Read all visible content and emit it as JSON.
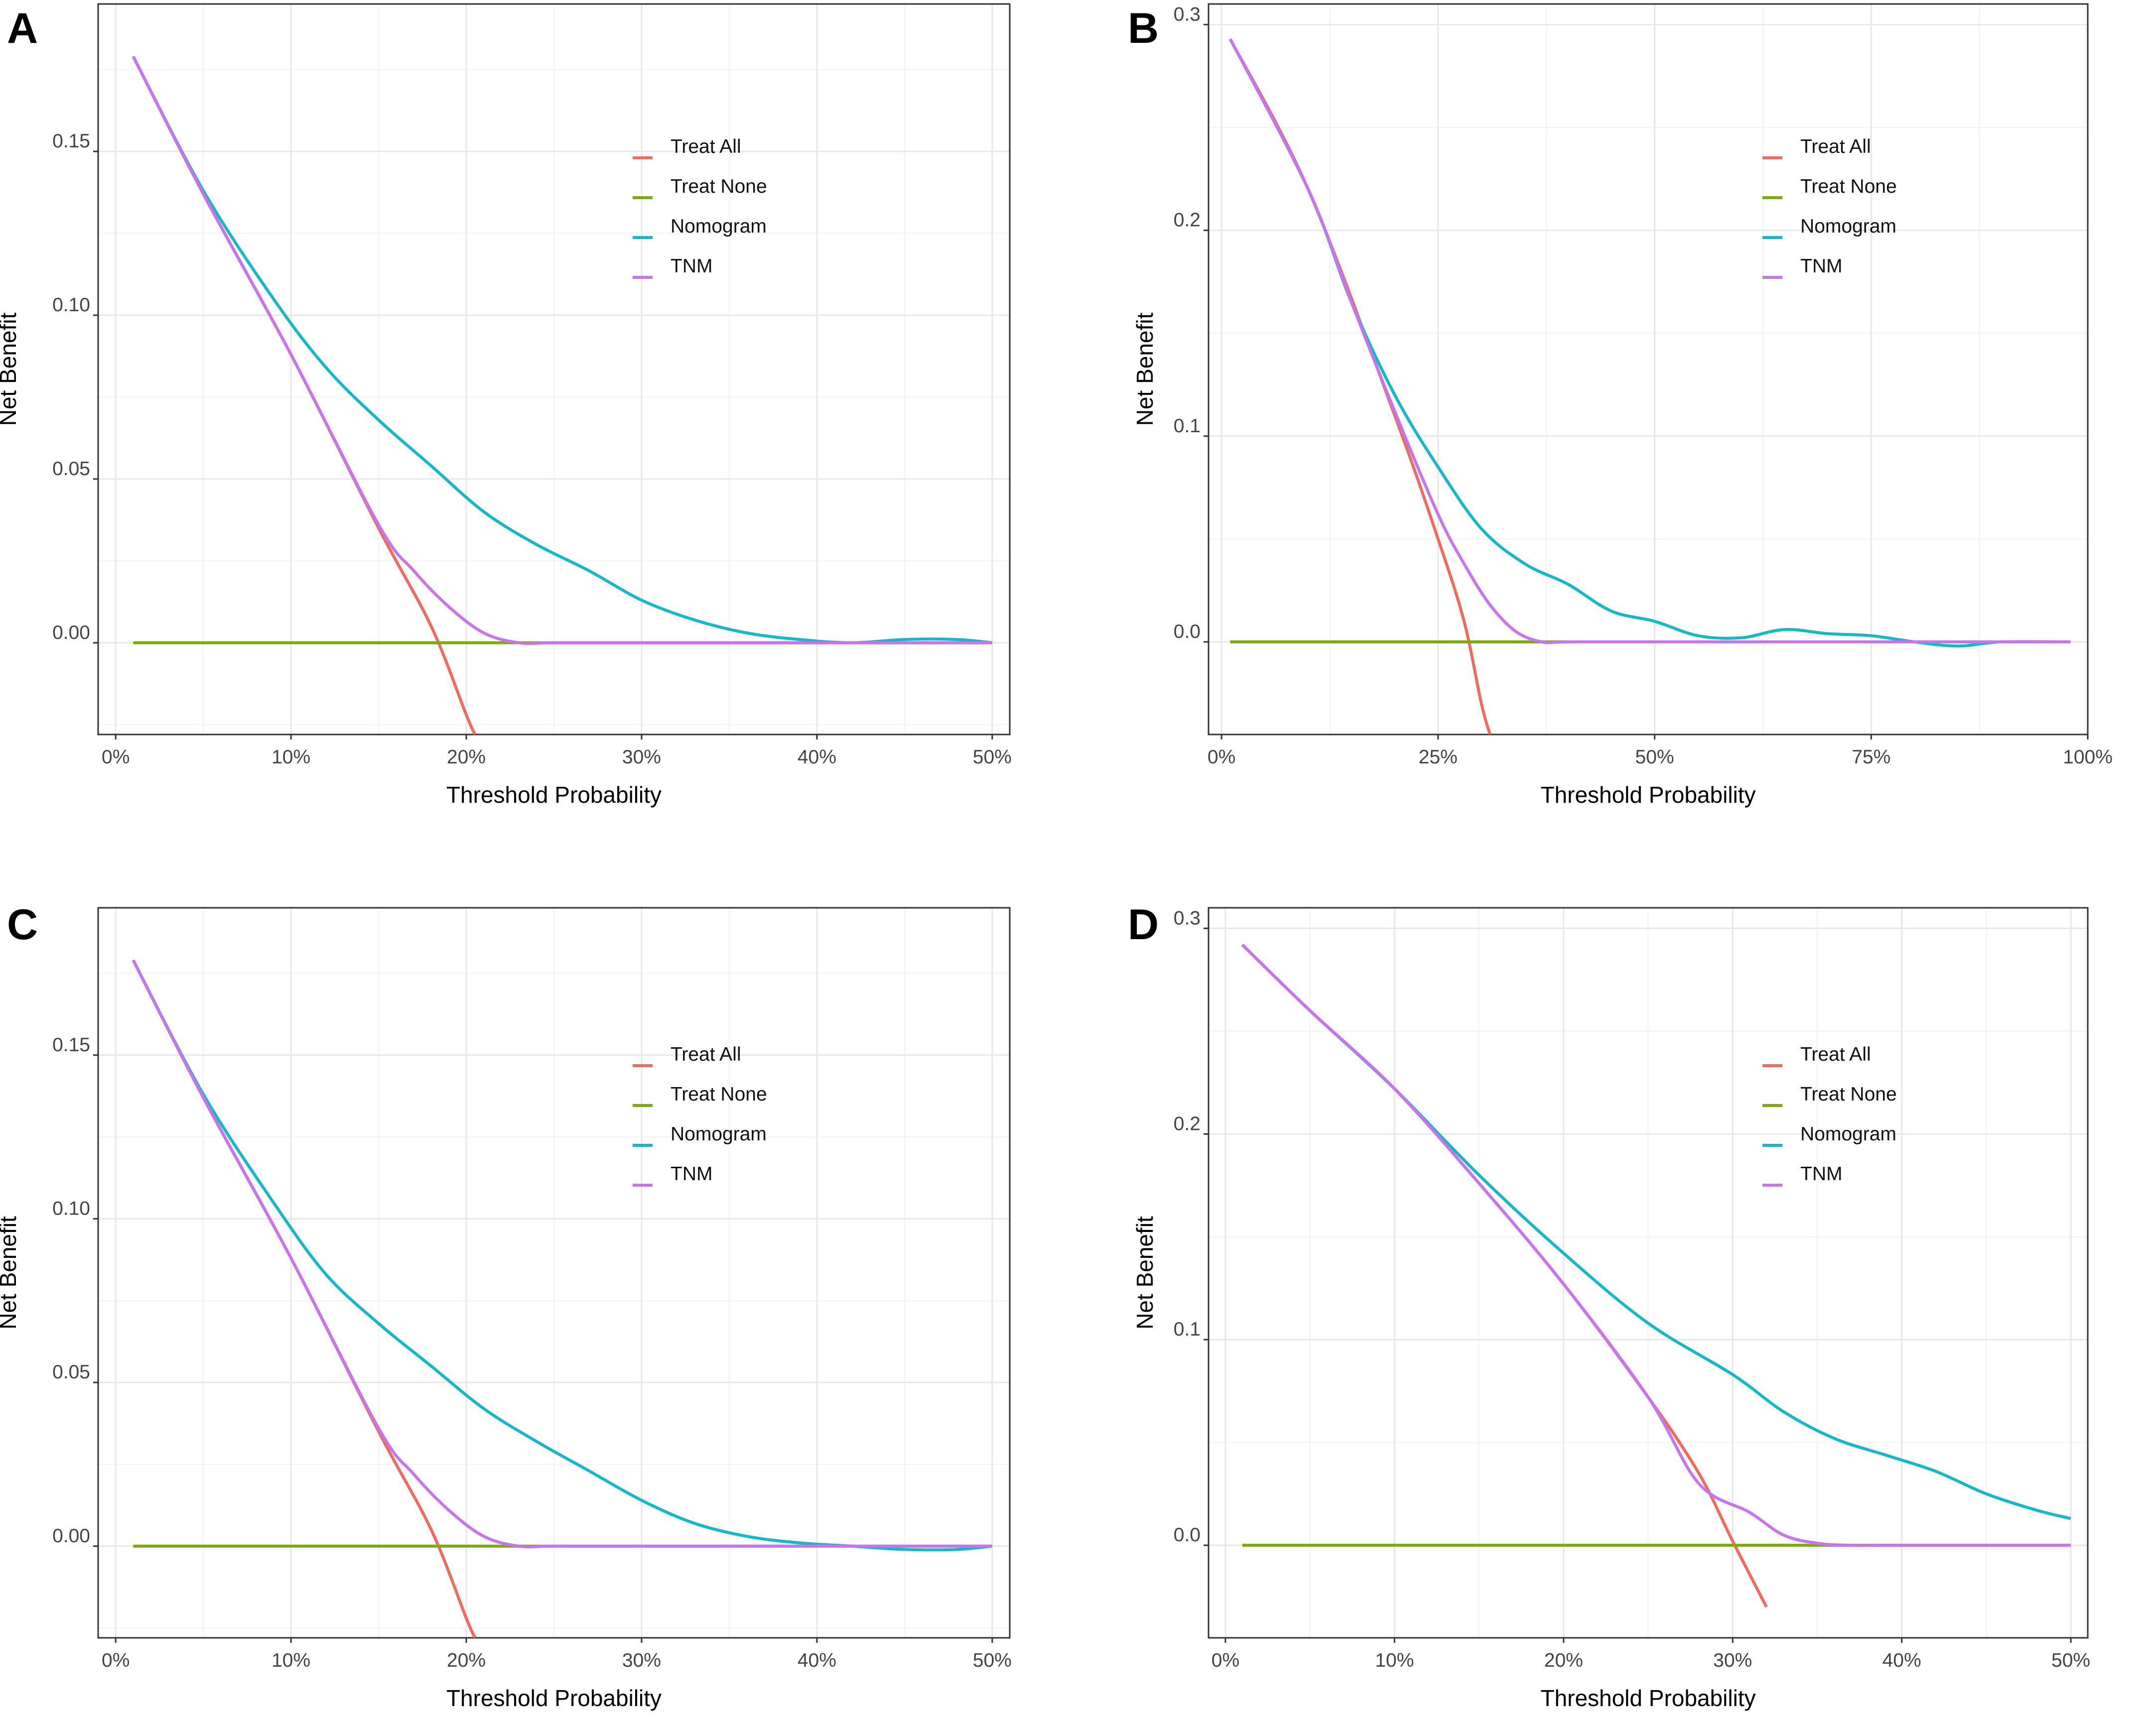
{
  "figure": {
    "panel_letters": [
      "A",
      "B",
      "C",
      "D"
    ],
    "legend_entries": [
      {
        "label": "Treat All",
        "color": "#ef6b5e"
      },
      {
        "label": "Treat None",
        "color": "#7caa0f"
      },
      {
        "label": "Nomogram",
        "color": "#13b9c6"
      },
      {
        "label": "TNM",
        "color": "#c774ee"
      }
    ]
  },
  "chart_data": [
    {
      "panel": "A",
      "type": "line",
      "xlabel": "Threshold Probability",
      "ylabel": "Net Benefit",
      "xlim": [
        -0.01,
        0.51
      ],
      "ylim": [
        -0.028,
        0.195
      ],
      "x_ticks": [
        0,
        0.1,
        0.2,
        0.3,
        0.4,
        0.5
      ],
      "x_tick_labels": [
        "0%",
        "10%",
        "20%",
        "30%",
        "40%",
        "50%"
      ],
      "y_ticks": [
        0,
        0.05,
        0.1,
        0.15
      ],
      "y_tick_labels": [
        "0.00",
        "0.05",
        "0.10",
        "0.15"
      ],
      "legend_position": "upper-middle",
      "series": [
        {
          "name": "Treat All",
          "color": "#ef6b5e",
          "x": [
            0.01,
            0.05,
            0.1,
            0.15,
            0.18,
            0.2,
            0.205
          ],
          "y": [
            0.179,
            0.137,
            0.088,
            0.035,
            0.005,
            -0.022,
            -0.028
          ]
        },
        {
          "name": "Treat None",
          "color": "#7caa0f",
          "x": [
            0.01,
            0.5
          ],
          "y": [
            0,
            0
          ]
        },
        {
          "name": "Nomogram",
          "color": "#13b9c6",
          "x": [
            0.01,
            0.05,
            0.09,
            0.12,
            0.15,
            0.18,
            0.21,
            0.24,
            0.27,
            0.3,
            0.33,
            0.36,
            0.39,
            0.42,
            0.45,
            0.48,
            0.5
          ],
          "y": [
            0.179,
            0.138,
            0.105,
            0.084,
            0.068,
            0.054,
            0.04,
            0.03,
            0.022,
            0.013,
            0.007,
            0.003,
            0.001,
            0.0,
            0.001,
            0.001,
            0.0
          ]
        },
        {
          "name": "TNM",
          "color": "#c774ee",
          "x": [
            0.01,
            0.05,
            0.1,
            0.15,
            0.17,
            0.19,
            0.21,
            0.23,
            0.25,
            0.3,
            0.4,
            0.5
          ],
          "y": [
            0.179,
            0.137,
            0.088,
            0.036,
            0.022,
            0.011,
            0.003,
            0.0,
            0.0,
            0.0,
            0.0,
            0.0
          ]
        }
      ]
    },
    {
      "panel": "B",
      "type": "line",
      "xlabel": "Threshold Probability",
      "ylabel": "Net Benefit",
      "xlim": [
        -0.015,
        1.0
      ],
      "ylim": [
        -0.045,
        0.31
      ],
      "x_ticks": [
        0,
        0.25,
        0.5,
        0.75,
        1.0
      ],
      "x_tick_labels": [
        "0%",
        "25%",
        "50%",
        "75%",
        "100%"
      ],
      "y_ticks": [
        0,
        0.1,
        0.2,
        0.3
      ],
      "y_tick_labels": [
        "0.0",
        "0.1",
        "0.2",
        "0.3"
      ],
      "legend_position": "upper-middle",
      "series": [
        {
          "name": "Treat All",
          "color": "#ef6b5e",
          "x": [
            0.01,
            0.1,
            0.2,
            0.25,
            0.28,
            0.3,
            0.31
          ],
          "y": [
            0.293,
            0.22,
            0.11,
            0.05,
            0.01,
            -0.03,
            -0.045
          ]
        },
        {
          "name": "Treat None",
          "color": "#7caa0f",
          "x": [
            0.01,
            0.98
          ],
          "y": [
            0,
            0
          ]
        },
        {
          "name": "Nomogram",
          "color": "#13b9c6",
          "x": [
            0.01,
            0.1,
            0.15,
            0.2,
            0.25,
            0.3,
            0.35,
            0.4,
            0.45,
            0.5,
            0.55,
            0.6,
            0.65,
            0.7,
            0.75,
            0.8,
            0.85,
            0.9,
            0.98
          ],
          "y": [
            0.293,
            0.22,
            0.165,
            0.12,
            0.085,
            0.055,
            0.038,
            0.028,
            0.015,
            0.01,
            0.003,
            0.002,
            0.006,
            0.004,
            0.003,
            0.0,
            -0.002,
            0.0,
            0.0
          ]
        },
        {
          "name": "TNM",
          "color": "#c774ee",
          "x": [
            0.01,
            0.1,
            0.15,
            0.2,
            0.25,
            0.28,
            0.31,
            0.34,
            0.37,
            0.4,
            0.5,
            0.75,
            0.98
          ],
          "y": [
            0.293,
            0.22,
            0.165,
            0.112,
            0.062,
            0.038,
            0.018,
            0.005,
            0.0,
            0.0,
            0.0,
            0.0,
            0.0
          ]
        }
      ]
    },
    {
      "panel": "C",
      "type": "line",
      "xlabel": "Threshold Probability",
      "ylabel": "Net Benefit",
      "xlim": [
        -0.01,
        0.51
      ],
      "ylim": [
        -0.028,
        0.195
      ],
      "x_ticks": [
        0,
        0.1,
        0.2,
        0.3,
        0.4,
        0.5
      ],
      "x_tick_labels": [
        "0%",
        "10%",
        "20%",
        "30%",
        "40%",
        "50%"
      ],
      "y_ticks": [
        0,
        0.05,
        0.1,
        0.15
      ],
      "y_tick_labels": [
        "0.00",
        "0.05",
        "0.10",
        "0.15"
      ],
      "legend_position": "upper-middle",
      "series": [
        {
          "name": "Treat All",
          "color": "#ef6b5e",
          "x": [
            0.01,
            0.05,
            0.1,
            0.15,
            0.18,
            0.2,
            0.205
          ],
          "y": [
            0.179,
            0.137,
            0.088,
            0.035,
            0.005,
            -0.022,
            -0.028
          ]
        },
        {
          "name": "Treat None",
          "color": "#7caa0f",
          "x": [
            0.01,
            0.5
          ],
          "y": [
            0,
            0
          ]
        },
        {
          "name": "Nomogram",
          "color": "#13b9c6",
          "x": [
            0.01,
            0.05,
            0.09,
            0.12,
            0.15,
            0.18,
            0.21,
            0.24,
            0.27,
            0.3,
            0.33,
            0.36,
            0.39,
            0.42,
            0.45,
            0.48,
            0.5
          ],
          "y": [
            0.179,
            0.138,
            0.105,
            0.083,
            0.068,
            0.055,
            0.042,
            0.032,
            0.023,
            0.014,
            0.007,
            0.003,
            0.001,
            0.0,
            -0.001,
            -0.001,
            0.0
          ]
        },
        {
          "name": "TNM",
          "color": "#c774ee",
          "x": [
            0.01,
            0.05,
            0.1,
            0.15,
            0.17,
            0.19,
            0.21,
            0.23,
            0.25,
            0.3,
            0.4,
            0.5
          ],
          "y": [
            0.179,
            0.137,
            0.088,
            0.036,
            0.022,
            0.011,
            0.003,
            0.0,
            0.0,
            0.0,
            0.0,
            0.0
          ]
        }
      ]
    },
    {
      "panel": "D",
      "type": "line",
      "xlabel": "Threshold Probability",
      "ylabel": "Net Benefit",
      "xlim": [
        -0.01,
        0.51
      ],
      "ylim": [
        -0.045,
        0.31
      ],
      "x_ticks": [
        0,
        0.1,
        0.2,
        0.3,
        0.4,
        0.5
      ],
      "x_tick_labels": [
        "0%",
        "10%",
        "20%",
        "30%",
        "40%",
        "50%"
      ],
      "y_ticks": [
        0,
        0.1,
        0.2,
        0.3
      ],
      "y_tick_labels": [
        "0.0",
        "0.1",
        "0.2",
        "0.3"
      ],
      "legend_position": "upper-middle",
      "series": [
        {
          "name": "Treat All",
          "color": "#ef6b5e",
          "x": [
            0.01,
            0.05,
            0.1,
            0.15,
            0.2,
            0.25,
            0.28,
            0.3,
            0.32
          ],
          "y": [
            0.292,
            0.26,
            0.222,
            0.176,
            0.127,
            0.072,
            0.035,
            0.002,
            -0.03
          ]
        },
        {
          "name": "Treat None",
          "color": "#7caa0f",
          "x": [
            0.01,
            0.5
          ],
          "y": [
            0,
            0
          ]
        },
        {
          "name": "Nomogram",
          "color": "#13b9c6",
          "x": [
            0.01,
            0.05,
            0.1,
            0.15,
            0.2,
            0.25,
            0.3,
            0.33,
            0.36,
            0.39,
            0.42,
            0.45,
            0.48,
            0.5
          ],
          "y": [
            0.292,
            0.26,
            0.222,
            0.18,
            0.142,
            0.108,
            0.083,
            0.065,
            0.052,
            0.044,
            0.036,
            0.025,
            0.017,
            0.013
          ]
        },
        {
          "name": "TNM",
          "color": "#c774ee",
          "x": [
            0.01,
            0.05,
            0.1,
            0.15,
            0.2,
            0.25,
            0.28,
            0.31,
            0.33,
            0.35,
            0.37,
            0.4,
            0.5
          ],
          "y": [
            0.292,
            0.26,
            0.222,
            0.176,
            0.127,
            0.072,
            0.03,
            0.016,
            0.005,
            0.001,
            0.0,
            0.0,
            0.0
          ]
        }
      ]
    }
  ]
}
